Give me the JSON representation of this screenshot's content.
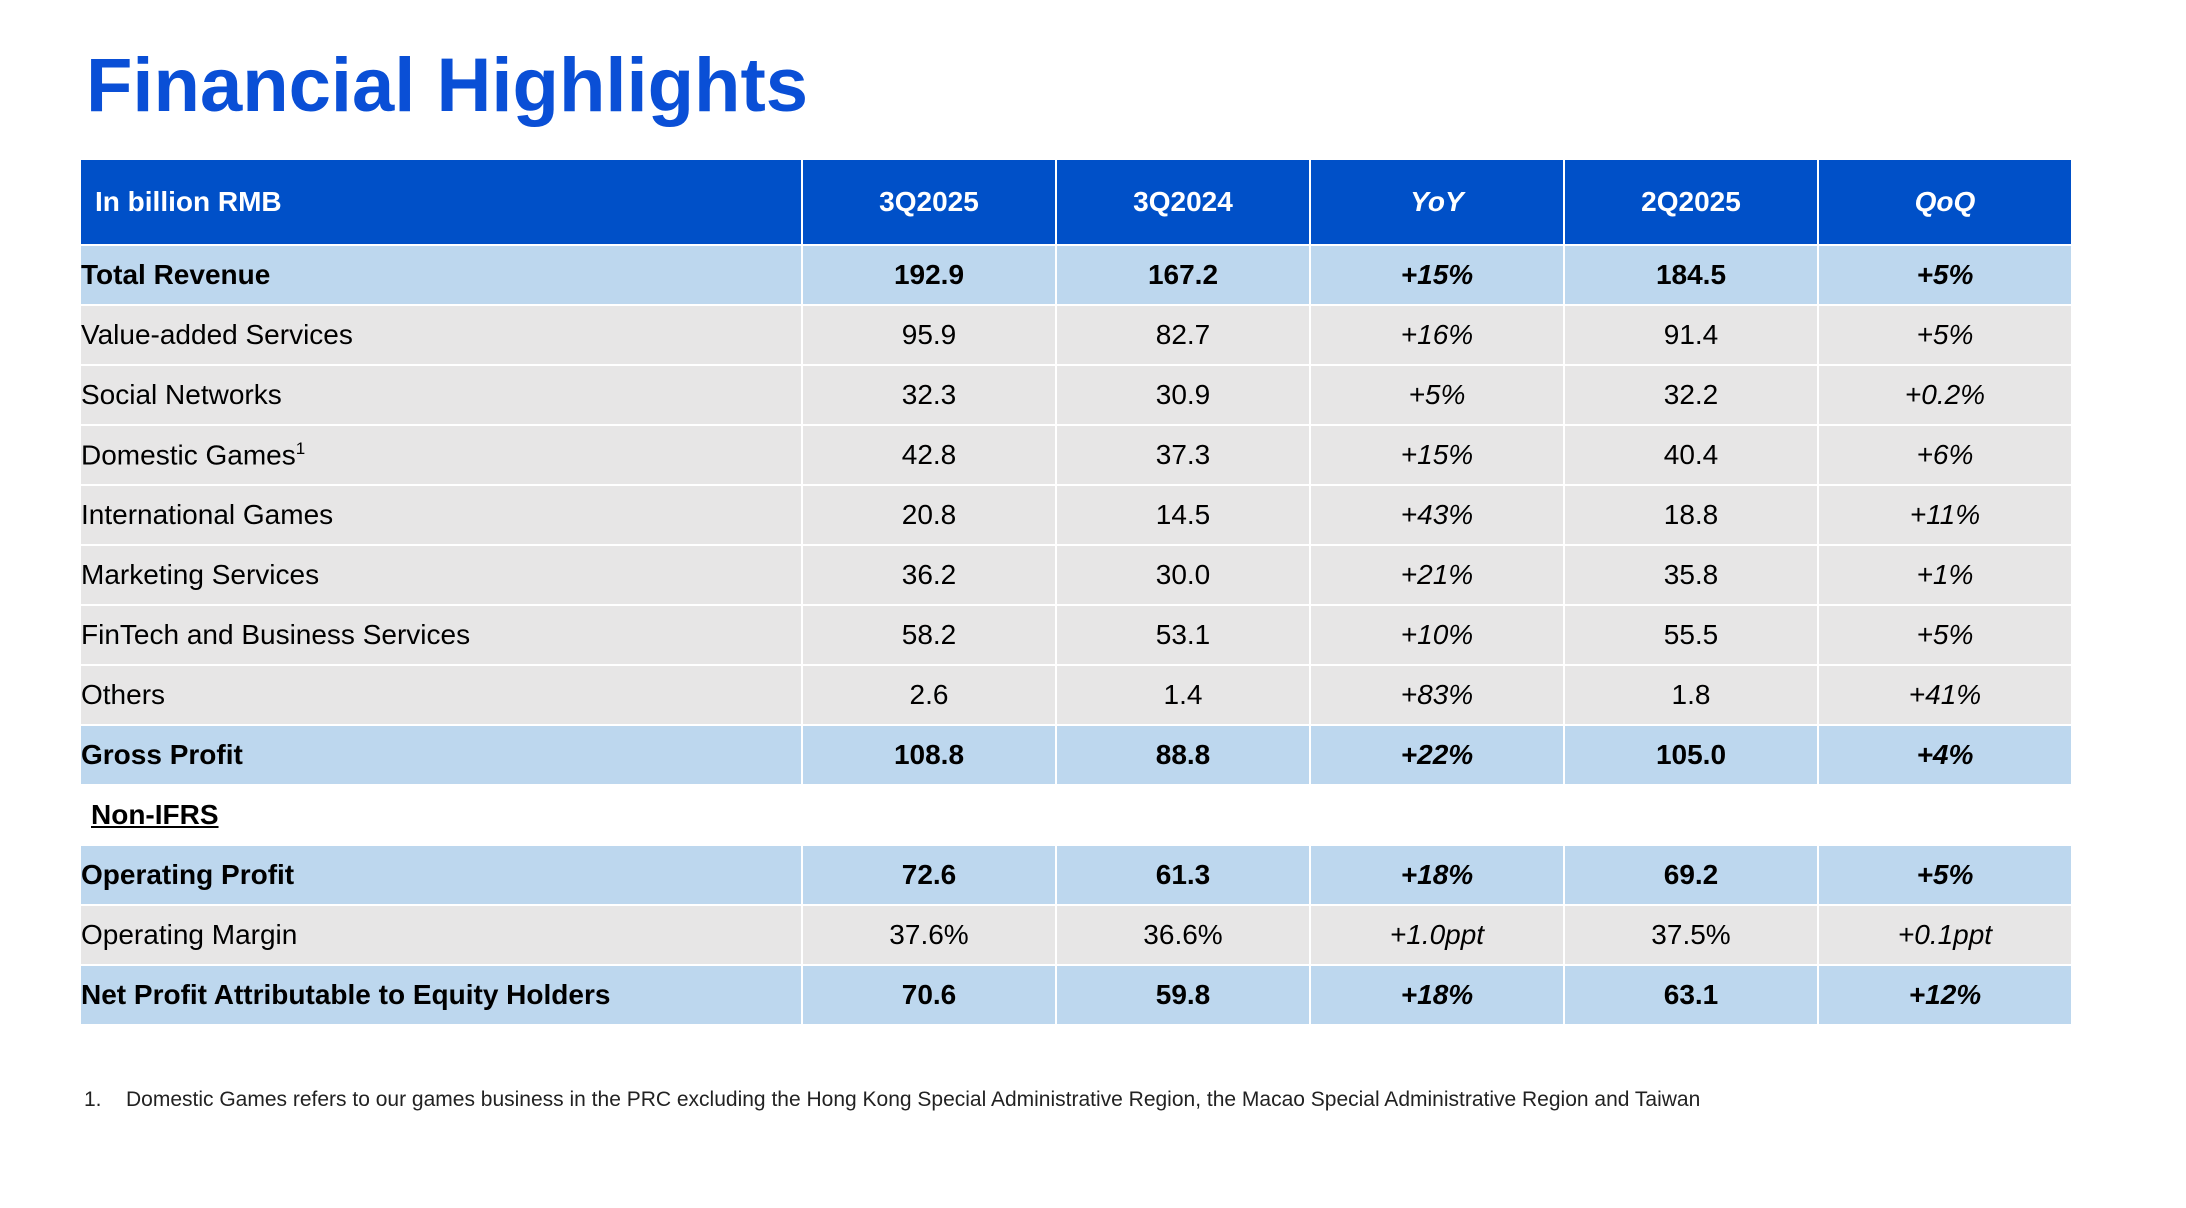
{
  "title": "Financial Highlights",
  "table": {
    "header": [
      "In billion RMB",
      "3Q2025",
      "3Q2024",
      "YoY",
      "2Q2025",
      "QoQ"
    ],
    "rows": [
      [
        "Total Revenue",
        "192.9",
        "167.2",
        "+15%",
        "184.5",
        "+5%"
      ],
      [
        "Value-added Services",
        "95.9",
        "82.7",
        "+16%",
        "91.4",
        "+5%"
      ],
      [
        "Social Networks",
        "32.3",
        "30.9",
        "+5%",
        "32.2",
        "+0.2%"
      ],
      [
        "Domestic Games",
        "42.8",
        "37.3",
        "+15%",
        "40.4",
        "+6%"
      ],
      [
        "International Games",
        "20.8",
        "14.5",
        "+43%",
        "18.8",
        "+11%"
      ],
      [
        "Marketing Services",
        "36.2",
        "30.0",
        "+21%",
        "35.8",
        "+1%"
      ],
      [
        "FinTech and Business Services",
        "58.2",
        "53.1",
        "+10%",
        "55.5",
        "+5%"
      ],
      [
        "Others",
        "2.6",
        "1.4",
        "+83%",
        "1.8",
        "+41%"
      ],
      [
        "Gross Profit",
        "108.8",
        "88.8",
        "+22%",
        "105.0",
        "+4%"
      ]
    ],
    "footnote_marker": "1",
    "non_ifrs": {
      "label": "Non-IFRS",
      "rows": [
        [
          "Operating Profit",
          "72.6",
          "61.3",
          "+18%",
          "69.2",
          "+5%"
        ],
        [
          "Operating Margin",
          "37.6%",
          "36.6%",
          "+1.0ppt",
          "37.5%",
          "+0.1ppt"
        ],
        [
          "Net Profit Attributable to Equity Holders",
          "70.6",
          "59.8",
          "+18%",
          "63.1",
          "+12%"
        ]
      ]
    }
  },
  "footnote": {
    "number": "1.",
    "text": "Domestic Games refers to our games business in the PRC excluding the Hong Kong Special Administrative Region, the Macao Special Administrative Region and Taiwan"
  }
}
